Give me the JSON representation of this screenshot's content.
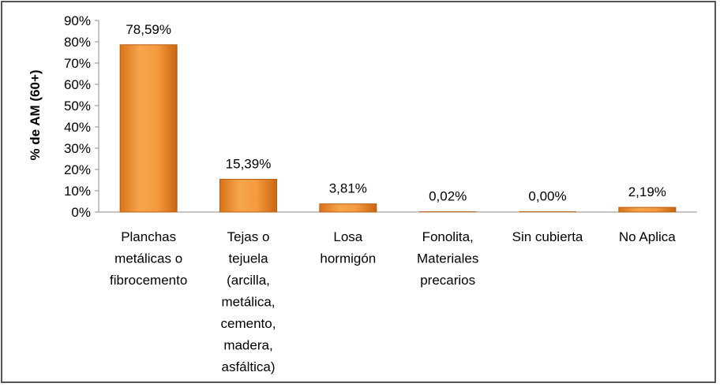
{
  "chart_data": {
    "type": "bar",
    "ylabel": "% de AM (60+)",
    "ylim": [
      0,
      90
    ],
    "yticks": [
      "0%",
      "10%",
      "20%",
      "30%",
      "40%",
      "50%",
      "60%",
      "70%",
      "80%",
      "90%"
    ],
    "grid": false,
    "legend": "none",
    "bar_color": "#F08A24",
    "categories": [
      "Planchas metálicas o fibrocemento",
      "Tejas o tejuela (arcilla, metálica, cemento, madera, asfáltica)",
      "Losa hormigón",
      "Fonolita, Materiales precarios",
      "Sin cubierta",
      "No Aplica"
    ],
    "category_lines": [
      [
        "Planchas",
        "metálicas o",
        "fibrocemento"
      ],
      [
        "Tejas o",
        "tejuela",
        "(arcilla,",
        "metálica,",
        "cemento,",
        "madera,",
        "asfáltica)"
      ],
      [
        "Losa",
        "hormigón"
      ],
      [
        "Fonolita,",
        "Materiales",
        "precarios"
      ],
      [
        "Sin cubierta"
      ],
      [
        "No Aplica"
      ]
    ],
    "values": [
      78.59,
      15.39,
      3.81,
      0.02,
      0.0,
      2.19
    ],
    "value_labels": [
      "78,59%",
      "15,39%",
      "3,81%",
      "0,02%",
      "0,00%",
      "2,19%"
    ]
  }
}
